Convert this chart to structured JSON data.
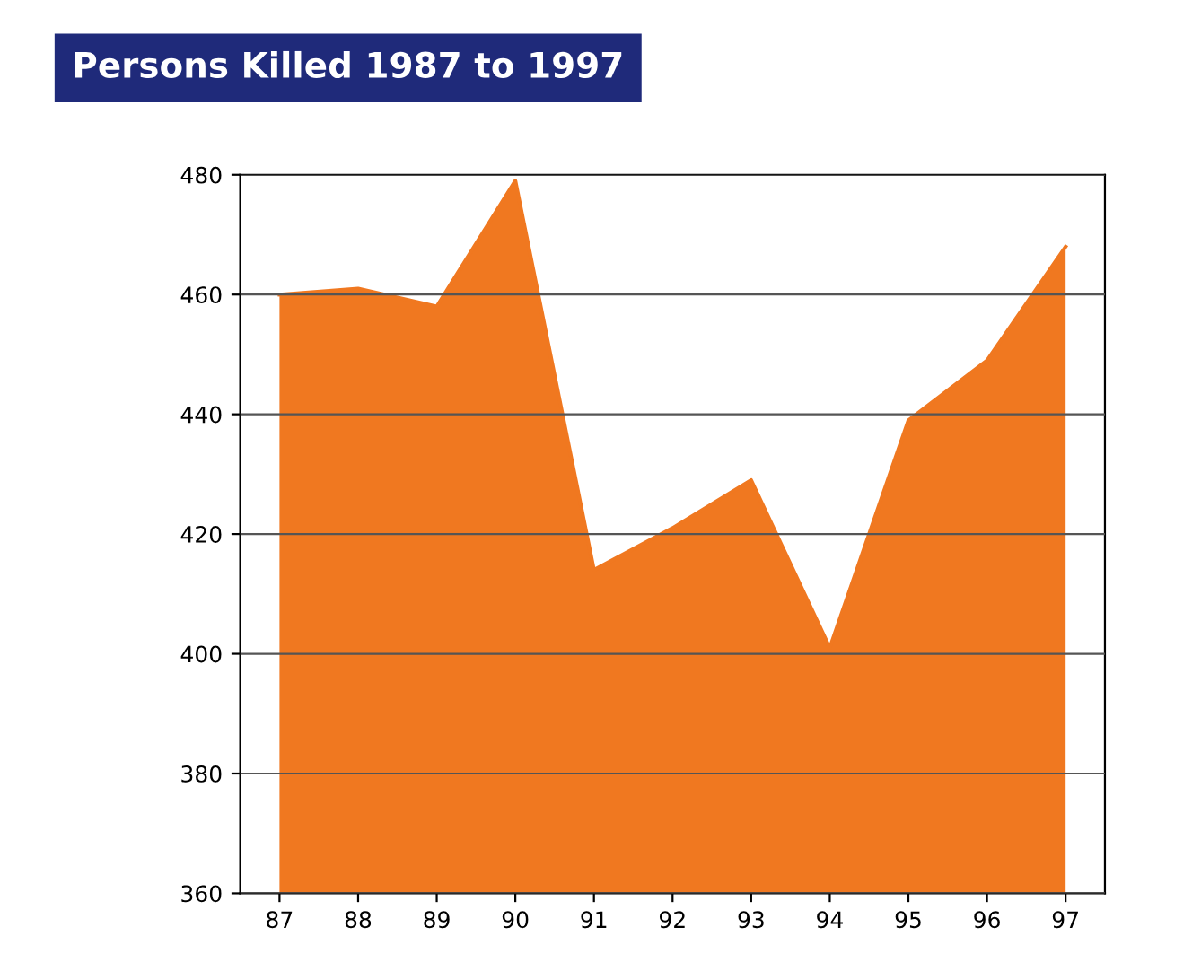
{
  "chart_data": {
    "type": "area",
    "title": "Persons Killed 1987 to 1997",
    "categories": [
      "87",
      "88",
      "89",
      "90",
      "91",
      "92",
      "93",
      "94",
      "95",
      "96",
      "97"
    ],
    "series": [
      {
        "color": "#f07820",
        "values": [
          460,
          461,
          458,
          479,
          414,
          421,
          429,
          401,
          439,
          449,
          468
        ]
      }
    ],
    "ylim": [
      360,
      480
    ],
    "yticks": [
      360,
      380,
      400,
      420,
      440,
      460,
      480
    ],
    "grid": "y"
  }
}
